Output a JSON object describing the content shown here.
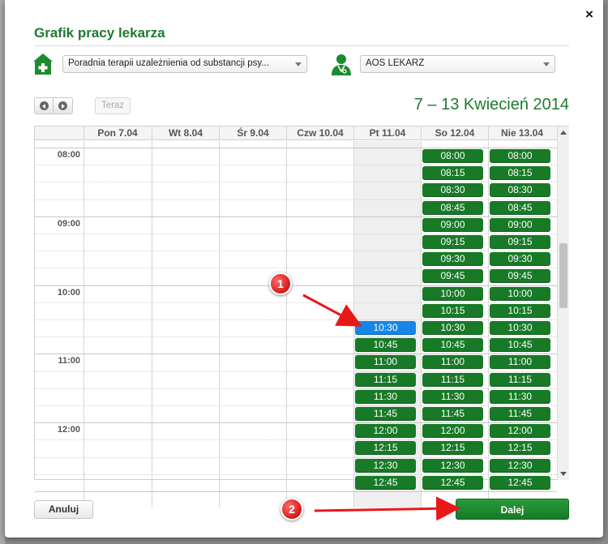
{
  "dialog": {
    "title": "Grafik pracy lekarza",
    "close_label": "×"
  },
  "filters": {
    "clinic_value": "Poradnia terapii uzależnienia od substancji psy...",
    "doctor_value": "AOS LEKARZ"
  },
  "navigation": {
    "today_label": "Teraz",
    "date_range": "7 – 13 Kwiecień 2014"
  },
  "calendar": {
    "days": [
      "Pon 7.04",
      "Wt 8.04",
      "Śr 9.04",
      "Czw 10.04",
      "Pt 11.04",
      "So 12.04",
      "Nie 13.04"
    ],
    "hours": [
      "08:00",
      "09:00",
      "10:00",
      "11:00",
      "12:00"
    ],
    "friday_slots": [
      "10:30",
      "10:45",
      "11:00",
      "11:15",
      "11:30",
      "11:45",
      "12:00",
      "12:15",
      "12:30",
      "12:45"
    ],
    "weekend_slots": [
      "08:00",
      "08:15",
      "08:30",
      "08:45",
      "09:00",
      "09:15",
      "09:30",
      "09:45",
      "10:00",
      "10:15",
      "10:30",
      "10:45",
      "11:00",
      "11:15",
      "11:30",
      "11:45",
      "12:00",
      "12:15",
      "12:30",
      "12:45"
    ],
    "selected_slot": "10:30"
  },
  "footer": {
    "cancel_label": "Anuluj",
    "next_label": "Dalej"
  },
  "annotations": {
    "marker_1": "1",
    "marker_2": "2"
  },
  "colors": {
    "accent_green": "#1e7a2e",
    "slot_green": "#187a27",
    "selected_blue": "#1586e6",
    "marker_red": "#d11a1a"
  }
}
